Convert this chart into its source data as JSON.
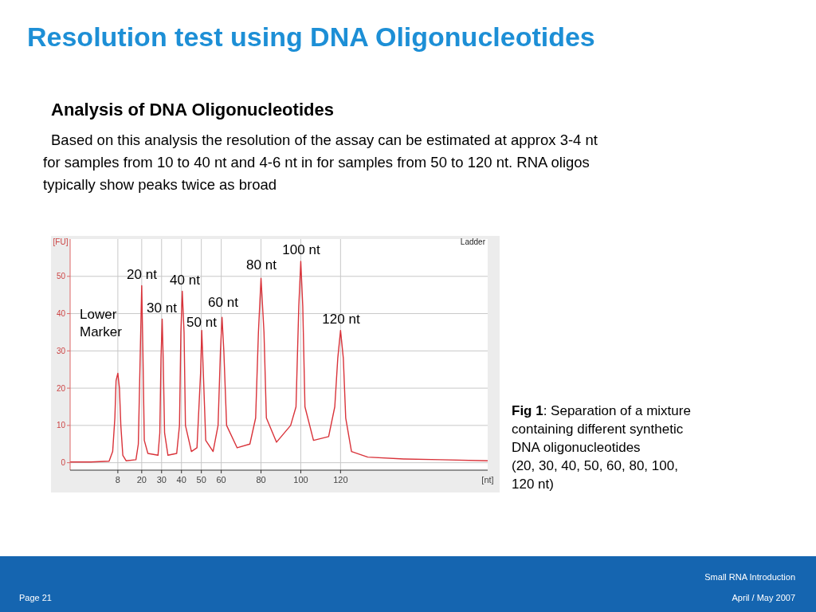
{
  "chart_data": {
    "type": "line",
    "title": "Resolution test using DNA Oligonucleotides",
    "subtitle": "Analysis of DNA Oligonucleotides",
    "xlabel": "[nt]",
    "ylabel": "[FU]",
    "x": [
      -16,
      -5.6,
      3.6,
      5.4,
      6.5,
      7.1,
      8,
      8.8,
      9.5,
      10.5,
      12.2,
      17.1,
      18.3,
      19.3,
      20,
      20.6,
      21.3,
      23.1,
      28.2,
      29.1,
      29.7,
      30.3,
      30.8,
      31.5,
      33.2,
      37.6,
      39.0,
      39.7,
      40.4,
      41.3,
      42.0,
      45.0,
      47.8,
      49.6,
      50.2,
      51.0,
      52.2,
      55.9,
      58.4,
      59.6,
      60.4,
      61.3,
      62.7,
      68.0,
      74.4,
      77.3,
      78.7,
      80,
      81.5,
      82.7,
      87.8,
      94.9,
      97.6,
      99.0,
      100,
      101.0,
      102.1,
      106.4,
      114.0,
      117.1,
      118.6,
      120,
      121.4,
      122.6,
      125.5,
      133.7,
      151.9,
      170.3,
      194
    ],
    "series": [
      {
        "color": "#d9333a",
        "values": [
          0.2,
          0.2,
          0.4,
          3,
          12,
          22,
          24,
          20,
          10,
          2,
          0.5,
          0.8,
          5,
          30,
          47.5,
          30,
          6,
          2.5,
          2,
          8,
          28,
          38.5,
          28,
          8,
          2,
          2.5,
          10,
          35,
          46,
          35,
          10,
          3,
          4,
          24,
          35.5,
          24,
          6,
          3,
          10,
          30,
          39,
          30,
          10,
          4,
          5,
          12,
          35,
          49.5,
          35,
          12,
          5.5,
          10,
          15,
          42,
          54,
          42,
          15,
          6,
          7,
          15,
          28,
          35.5,
          28,
          12,
          3,
          1.5,
          1,
          0.8,
          0.5
        ]
      }
    ],
    "xlim": [
      -16,
      194
    ],
    "ylim": [
      -2,
      60
    ],
    "xticks": [
      8,
      20,
      30,
      40,
      50,
      60,
      80,
      100,
      120
    ],
    "yticks": [
      0,
      10,
      20,
      30,
      40,
      50
    ],
    "grid": true,
    "annotations": [
      "Based on this analysis the resolution of the assay can be estimated at approx 3-4 nt for samples from 10 to 40 nt and 4-6 nt in for samples from 50 to 120 nt. RNA oligos typically show peaks twice as broad",
      "Ladder",
      "Fig 1: Separation of a mixture containing different synthetic DNA oligonucleotides (20, 30, 40, 50, 60, 80, 100, 120 nt)",
      "Small RNA Introduction",
      "Page 21",
      "April / May 2007",
      "Lower Marker",
      "20 nt",
      "30 nt",
      "40 nt",
      "50 nt",
      "60 nt",
      "80 nt",
      "100 nt",
      "120 nt"
    ]
  }
}
